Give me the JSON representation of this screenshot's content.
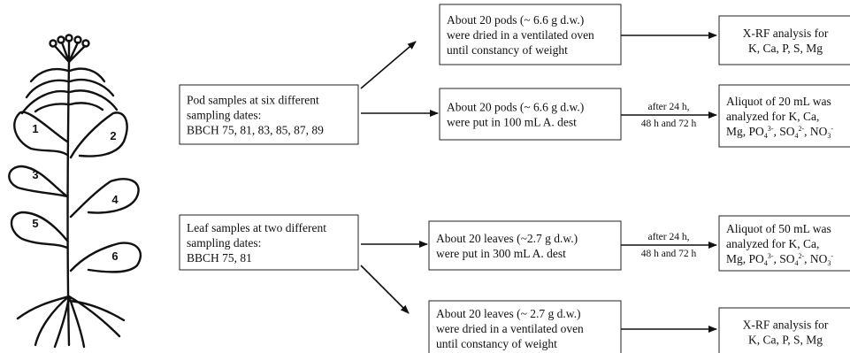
{
  "plant": {
    "leaf_labels": [
      "1",
      "2",
      "3",
      "4",
      "5",
      "6"
    ]
  },
  "samples": [
    {
      "lines": [
        "Pod samples at six different",
        "sampling dates:",
        "BBCH 75, 81, 83, 85, 87, 89"
      ]
    },
    {
      "lines": [
        "Leaf samples at two different",
        "sampling dates:",
        "BBCH 75, 81"
      ]
    }
  ],
  "steps": [
    {
      "lines": [
        "About 20 pods (~ 6.6 g d.w.)",
        "were dried in a ventilated oven",
        "until constancy of weight"
      ]
    },
    {
      "lines": [
        "About 20 pods (~ 6.6 g d.w.)",
        "were put in 100 mL A. dest"
      ]
    },
    {
      "lines": [
        "About 20 leaves (~2.7 g d.w.)",
        "were put in 300 mL A. dest"
      ]
    },
    {
      "lines": [
        "About 20 leaves (~ 2.7 g d.w.)",
        "were dried in a ventilated oven",
        "until constancy of weight"
      ]
    }
  ],
  "timing_labels": [
    [
      "after 24 h,",
      "48 h and 72 h"
    ],
    [
      "after 24 h,",
      "48 h and 72 h"
    ]
  ],
  "analyses": [
    {
      "lines": [
        "X-RF analysis for",
        "K, Ca, P, S, Mg"
      ]
    },
    {
      "lines": [
        "Aliquot of 20 mL was",
        "analyzed for K, Ca,",
        [
          "Mg, PO",
          "4",
          "3-",
          ", SO",
          "4",
          "2-",
          ", NO",
          "3",
          "-"
        ]
      ]
    },
    {
      "lines": [
        "Aliquot of 50 mL was",
        "analyzed for K, Ca,",
        [
          "Mg, PO",
          "4",
          "3-",
          ", SO",
          "4",
          "2-",
          ", NO",
          "3",
          "-"
        ]
      ]
    },
    {
      "lines": [
        "X-RF analysis for",
        "K, Ca, P, S, Mg"
      ]
    }
  ]
}
